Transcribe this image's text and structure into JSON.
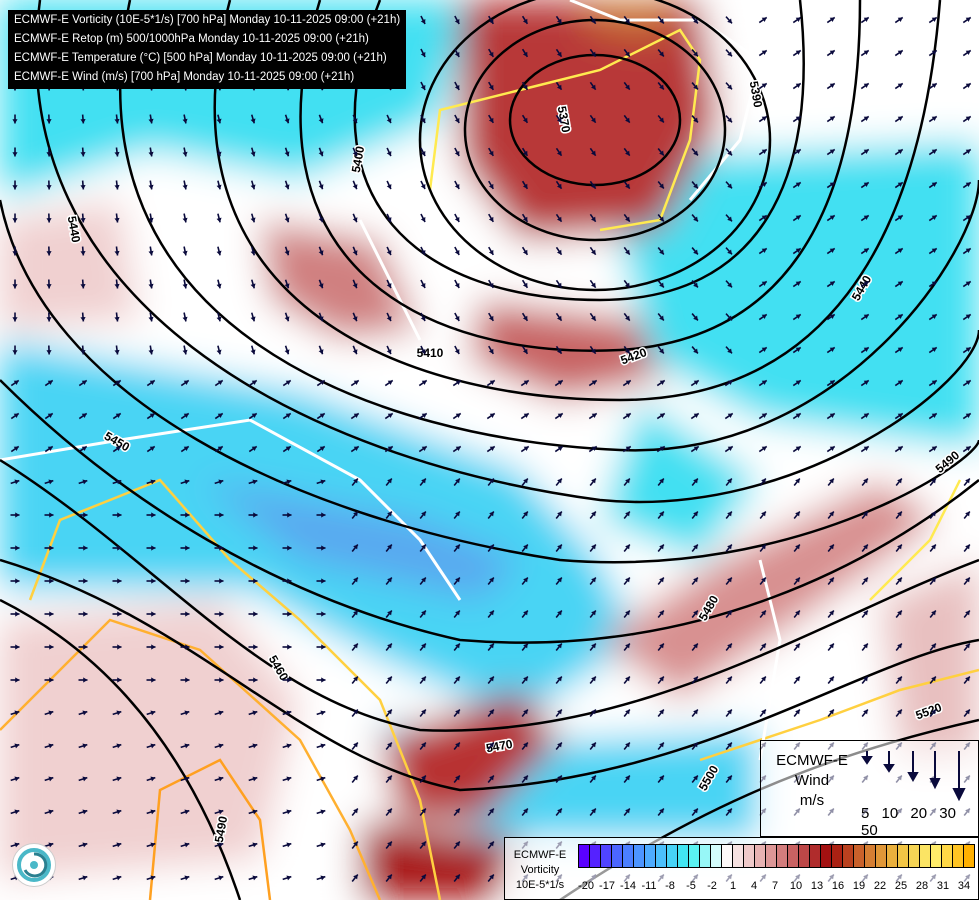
{
  "header": {
    "lines": [
      "ECMWF-E Vorticity (10E-5*1/s) [700 hPa] Monday 10-11-2025 09:00 (+21h)",
      "ECMWF-E Retop (m) 500/1000hPa Monday 10-11-2025 09:00 (+21h)",
      "ECMWF-E Temperature (°C) [500 hPa] Monday 10-11-2025 09:00 (+21h)",
      "ECMWF-E Wind (m/s) [700 hPa] Monday 10-11-2025 09:00 (+21h)"
    ]
  },
  "contour_labels": [
    "5370",
    "5390",
    "5400",
    "5410",
    "5420",
    "5440",
    "5440",
    "5450",
    "5460",
    "5470",
    "5480",
    "5490",
    "5490",
    "5500",
    "5520"
  ],
  "wind_legend": {
    "line1": "ECMWF-E",
    "line2": "Wind",
    "line3": "m/s",
    "speeds": [
      "5",
      "10",
      "20",
      "30",
      "50"
    ],
    "arrow_color": "#0a0a3c"
  },
  "vorticity_legend": {
    "line1": "ECMWF-E",
    "line2": "Vorticity",
    "line3": "10E-5*1/s",
    "ticks": [
      "-20",
      "-17",
      "-14",
      "-11",
      "-8",
      "-5",
      "-2",
      "1",
      "4",
      "7",
      "10",
      "13",
      "16",
      "19",
      "22",
      "25",
      "28",
      "31",
      "34"
    ],
    "color_stops": [
      "#5a00ff",
      "#4a6cff",
      "#4fb4ff",
      "#3ff0f0",
      "#ffffff",
      "#e8b4b4",
      "#c86060",
      "#a00a0a",
      "#d07030",
      "#f0c040",
      "#fff070",
      "#ffb000"
    ]
  },
  "colors": {
    "positive_vorticity": "#c05050",
    "negative_vorticity": "#40e0f0",
    "contour": "#000000",
    "temperature_isotherm": "#ffd040"
  }
}
